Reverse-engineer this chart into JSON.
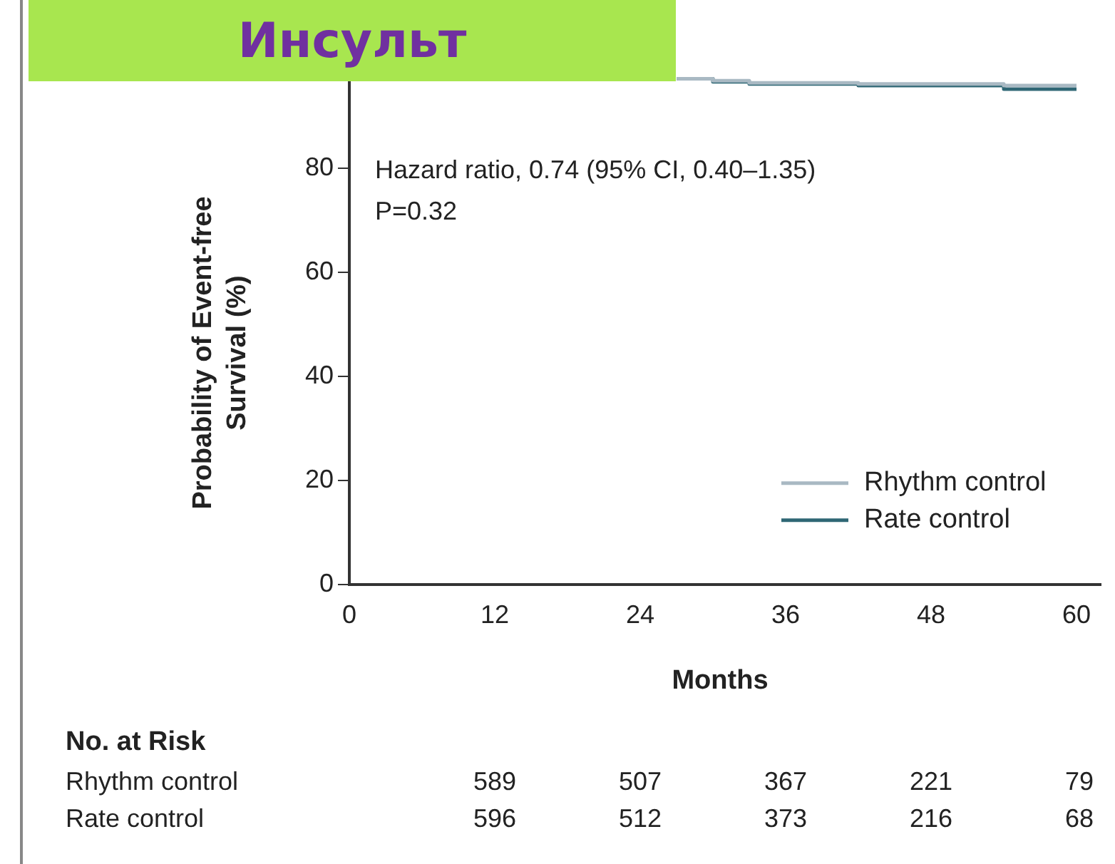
{
  "chart_data": {
    "type": "step",
    "title": "Инсульт",
    "ylabel": "Probability of Event-free Survival (%)",
    "xlabel": "Months",
    "xlim": [
      0,
      62
    ],
    "xticks": [
      0,
      12,
      24,
      36,
      48,
      60
    ],
    "ylim": [
      0,
      100
    ],
    "yticks": [
      0,
      20,
      40,
      60,
      80
    ],
    "grid": false,
    "legend": "bottom right",
    "marker": "none",
    "line_style": "solid",
    "series": [
      {
        "name": "Rhythm control",
        "color": "#a9b9c3",
        "x": [
          27,
          30,
          33,
          42,
          54,
          60
        ],
        "values": [
          97.2,
          96.8,
          96.4,
          96.2,
          95.9,
          95.9
        ]
      },
      {
        "name": "Rate control",
        "color": "#2f6775",
        "x": [
          27,
          30,
          33,
          42,
          54,
          60
        ],
        "values": [
          97.2,
          96.6,
          96.2,
          95.9,
          95.2,
          95.2
        ]
      }
    ],
    "annotations": [
      "Hazard ratio, 0.74 (95% CI, 0.40–1.35)",
      "P=0.32",
      "No. at Risk",
      "Rhythm control",
      "589",
      "507",
      "367",
      "221",
      "79",
      "Rate control",
      "596",
      "512",
      "373",
      "216",
      "68"
    ]
  }
}
